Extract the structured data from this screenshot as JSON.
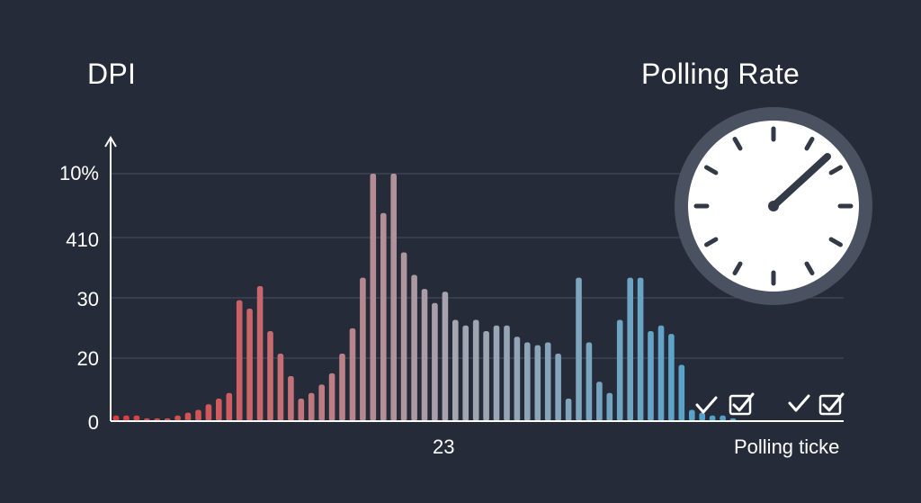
{
  "titles": {
    "left": "DPI",
    "right": "Polling Rate"
  },
  "colors": {
    "background": "#252b38",
    "axis": "#ffffff",
    "grid": "#465063",
    "bar_start": "#e23a3a",
    "bar_mid": "#a6a6b0",
    "bar_end": "#4aa3cf",
    "clock_face": "#ffffff",
    "clock_ring": "#4a5160",
    "clock_ink": "#333a47"
  },
  "icons": [
    "clock-icon",
    "checkmark-icon",
    "checked-box-icon"
  ],
  "chart_data": {
    "type": "bar",
    "y_tick_labels": [
      "0",
      "20",
      "30",
      "410",
      "10%"
    ],
    "x_tick_labels": [
      "23"
    ],
    "xlabel": "Polling ticke",
    "ylabel": "",
    "title": "DPI",
    "grid": true,
    "values": [
      1,
      1,
      1,
      0.5,
      0.5,
      0.5,
      1,
      1.5,
      2,
      3,
      4,
      5,
      21.5,
      20,
      24,
      16,
      12,
      8,
      4,
      5,
      6.5,
      8.5,
      12,
      16.5,
      25.5,
      44,
      37,
      44,
      30,
      26,
      23.5,
      21,
      23,
      18,
      17,
      18,
      16,
      17,
      17,
      15,
      14,
      13.5,
      14,
      12,
      4,
      25.5,
      14,
      7,
      5,
      18,
      25.5,
      25.5,
      16,
      17,
      15.5,
      10,
      2,
      1.5,
      1,
      1,
      0.5
    ],
    "ylim": [
      0,
      48
    ]
  },
  "checks": {
    "group1": [
      "✓",
      "☑"
    ],
    "group2": [
      "✓",
      "☑"
    ]
  }
}
